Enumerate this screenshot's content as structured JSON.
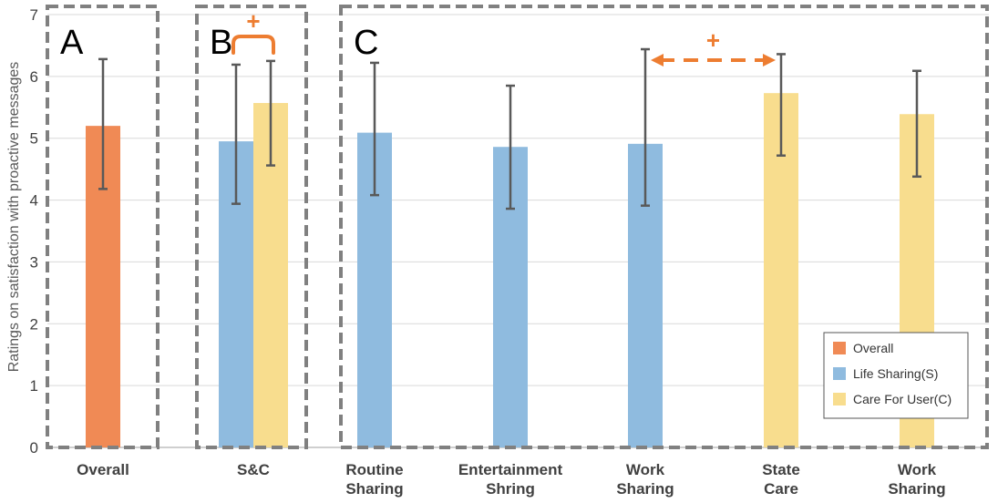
{
  "chart_data": {
    "type": "bar",
    "ylabel": "Ratings on satisfaction with proactive messages",
    "ylim": [
      0,
      7
    ],
    "yticks": [
      0,
      1,
      2,
      3,
      4,
      5,
      6,
      7
    ],
    "grid": true,
    "legend_position": "bottom-right",
    "legend": [
      {
        "name": "Overall",
        "color": "#F08A55"
      },
      {
        "name": "Life Sharing(S)",
        "color": "#8FBBDF"
      },
      {
        "name": "Care For User(C)",
        "color": "#F8DD8E"
      }
    ],
    "groups": [
      {
        "label": "Overall",
        "panel": "A",
        "bars": [
          {
            "series": "Overall",
            "value": 5.2,
            "err_low": 4.18,
            "err_high": 6.28
          }
        ]
      },
      {
        "label": "S&C",
        "panel": "B",
        "bars": [
          {
            "series": "Life Sharing(S)",
            "value": 4.95,
            "err_low": 3.94,
            "err_high": 6.19
          },
          {
            "series": "Care For User(C)",
            "value": 5.57,
            "err_low": 4.56,
            "err_high": 6.25
          }
        ]
      },
      {
        "label": "Routine Sharing",
        "panel": "C",
        "bars": [
          {
            "series": "Life Sharing(S)",
            "value": 5.09,
            "err_low": 4.08,
            "err_high": 6.22
          }
        ]
      },
      {
        "label": "Entertainment Shring",
        "panel": "C",
        "bars": [
          {
            "series": "Life Sharing(S)",
            "value": 4.86,
            "err_low": 3.86,
            "err_high": 5.85
          }
        ]
      },
      {
        "label": "Work Sharing",
        "panel": "C",
        "bars": [
          {
            "series": "Life Sharing(S)",
            "value": 4.91,
            "err_low": 3.91,
            "err_high": 6.44
          }
        ]
      },
      {
        "label": "State Care",
        "panel": "C",
        "bars": [
          {
            "series": "Care For User(C)",
            "value": 5.73,
            "err_low": 4.72,
            "err_high": 6.36
          }
        ]
      },
      {
        "label": "Work Sharing",
        "panel": "C",
        "bars": [
          {
            "series": "Care For User(C)",
            "value": 5.39,
            "err_low": 4.38,
            "err_high": 6.09
          }
        ]
      }
    ],
    "annotations": [
      {
        "text": "+",
        "between": [
          "S&C: Life Sharing(S)",
          "S&C: Care For User(C)"
        ],
        "style": "bracket"
      },
      {
        "text": "+",
        "between": [
          "Work Sharing",
          "State Care"
        ],
        "style": "dashed-arrow"
      }
    ],
    "panels": [
      "A",
      "B",
      "C"
    ]
  }
}
